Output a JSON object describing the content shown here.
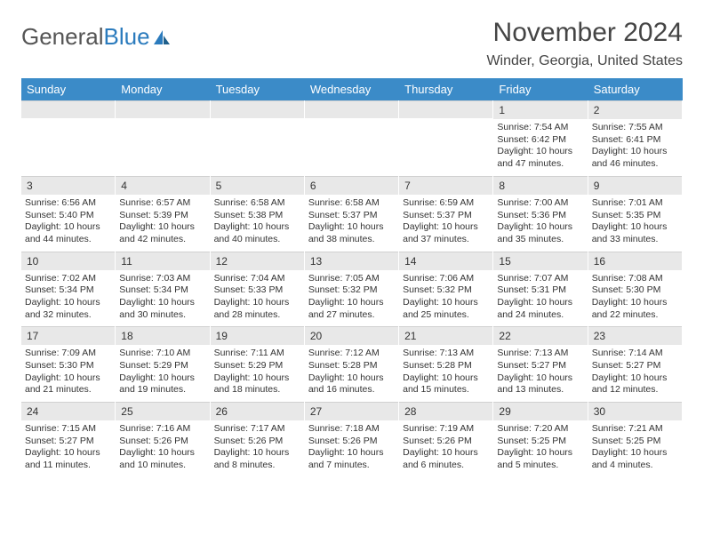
{
  "logo": {
    "text1": "General",
    "text2": "Blue"
  },
  "title": "November 2024",
  "location": "Winder, Georgia, United States",
  "weekdays": [
    "Sunday",
    "Monday",
    "Tuesday",
    "Wednesday",
    "Thursday",
    "Friday",
    "Saturday"
  ],
  "colors": {
    "header_bg": "#3b8bc8",
    "header_text": "#ffffff",
    "daynum_bg": "#e8e8e8",
    "text": "#333333",
    "logo_gray": "#555555",
    "logo_blue": "#2b7bbd"
  },
  "weeks": [
    [
      {
        "n": "",
        "sunrise": "",
        "sunset": "",
        "daylight": ""
      },
      {
        "n": "",
        "sunrise": "",
        "sunset": "",
        "daylight": ""
      },
      {
        "n": "",
        "sunrise": "",
        "sunset": "",
        "daylight": ""
      },
      {
        "n": "",
        "sunrise": "",
        "sunset": "",
        "daylight": ""
      },
      {
        "n": "",
        "sunrise": "",
        "sunset": "",
        "daylight": ""
      },
      {
        "n": "1",
        "sunrise": "Sunrise: 7:54 AM",
        "sunset": "Sunset: 6:42 PM",
        "daylight": "Daylight: 10 hours and 47 minutes."
      },
      {
        "n": "2",
        "sunrise": "Sunrise: 7:55 AM",
        "sunset": "Sunset: 6:41 PM",
        "daylight": "Daylight: 10 hours and 46 minutes."
      }
    ],
    [
      {
        "n": "3",
        "sunrise": "Sunrise: 6:56 AM",
        "sunset": "Sunset: 5:40 PM",
        "daylight": "Daylight: 10 hours and 44 minutes."
      },
      {
        "n": "4",
        "sunrise": "Sunrise: 6:57 AM",
        "sunset": "Sunset: 5:39 PM",
        "daylight": "Daylight: 10 hours and 42 minutes."
      },
      {
        "n": "5",
        "sunrise": "Sunrise: 6:58 AM",
        "sunset": "Sunset: 5:38 PM",
        "daylight": "Daylight: 10 hours and 40 minutes."
      },
      {
        "n": "6",
        "sunrise": "Sunrise: 6:58 AM",
        "sunset": "Sunset: 5:37 PM",
        "daylight": "Daylight: 10 hours and 38 minutes."
      },
      {
        "n": "7",
        "sunrise": "Sunrise: 6:59 AM",
        "sunset": "Sunset: 5:37 PM",
        "daylight": "Daylight: 10 hours and 37 minutes."
      },
      {
        "n": "8",
        "sunrise": "Sunrise: 7:00 AM",
        "sunset": "Sunset: 5:36 PM",
        "daylight": "Daylight: 10 hours and 35 minutes."
      },
      {
        "n": "9",
        "sunrise": "Sunrise: 7:01 AM",
        "sunset": "Sunset: 5:35 PM",
        "daylight": "Daylight: 10 hours and 33 minutes."
      }
    ],
    [
      {
        "n": "10",
        "sunrise": "Sunrise: 7:02 AM",
        "sunset": "Sunset: 5:34 PM",
        "daylight": "Daylight: 10 hours and 32 minutes."
      },
      {
        "n": "11",
        "sunrise": "Sunrise: 7:03 AM",
        "sunset": "Sunset: 5:34 PM",
        "daylight": "Daylight: 10 hours and 30 minutes."
      },
      {
        "n": "12",
        "sunrise": "Sunrise: 7:04 AM",
        "sunset": "Sunset: 5:33 PM",
        "daylight": "Daylight: 10 hours and 28 minutes."
      },
      {
        "n": "13",
        "sunrise": "Sunrise: 7:05 AM",
        "sunset": "Sunset: 5:32 PM",
        "daylight": "Daylight: 10 hours and 27 minutes."
      },
      {
        "n": "14",
        "sunrise": "Sunrise: 7:06 AM",
        "sunset": "Sunset: 5:32 PM",
        "daylight": "Daylight: 10 hours and 25 minutes."
      },
      {
        "n": "15",
        "sunrise": "Sunrise: 7:07 AM",
        "sunset": "Sunset: 5:31 PM",
        "daylight": "Daylight: 10 hours and 24 minutes."
      },
      {
        "n": "16",
        "sunrise": "Sunrise: 7:08 AM",
        "sunset": "Sunset: 5:30 PM",
        "daylight": "Daylight: 10 hours and 22 minutes."
      }
    ],
    [
      {
        "n": "17",
        "sunrise": "Sunrise: 7:09 AM",
        "sunset": "Sunset: 5:30 PM",
        "daylight": "Daylight: 10 hours and 21 minutes."
      },
      {
        "n": "18",
        "sunrise": "Sunrise: 7:10 AM",
        "sunset": "Sunset: 5:29 PM",
        "daylight": "Daylight: 10 hours and 19 minutes."
      },
      {
        "n": "19",
        "sunrise": "Sunrise: 7:11 AM",
        "sunset": "Sunset: 5:29 PM",
        "daylight": "Daylight: 10 hours and 18 minutes."
      },
      {
        "n": "20",
        "sunrise": "Sunrise: 7:12 AM",
        "sunset": "Sunset: 5:28 PM",
        "daylight": "Daylight: 10 hours and 16 minutes."
      },
      {
        "n": "21",
        "sunrise": "Sunrise: 7:13 AM",
        "sunset": "Sunset: 5:28 PM",
        "daylight": "Daylight: 10 hours and 15 minutes."
      },
      {
        "n": "22",
        "sunrise": "Sunrise: 7:13 AM",
        "sunset": "Sunset: 5:27 PM",
        "daylight": "Daylight: 10 hours and 13 minutes."
      },
      {
        "n": "23",
        "sunrise": "Sunrise: 7:14 AM",
        "sunset": "Sunset: 5:27 PM",
        "daylight": "Daylight: 10 hours and 12 minutes."
      }
    ],
    [
      {
        "n": "24",
        "sunrise": "Sunrise: 7:15 AM",
        "sunset": "Sunset: 5:27 PM",
        "daylight": "Daylight: 10 hours and 11 minutes."
      },
      {
        "n": "25",
        "sunrise": "Sunrise: 7:16 AM",
        "sunset": "Sunset: 5:26 PM",
        "daylight": "Daylight: 10 hours and 10 minutes."
      },
      {
        "n": "26",
        "sunrise": "Sunrise: 7:17 AM",
        "sunset": "Sunset: 5:26 PM",
        "daylight": "Daylight: 10 hours and 8 minutes."
      },
      {
        "n": "27",
        "sunrise": "Sunrise: 7:18 AM",
        "sunset": "Sunset: 5:26 PM",
        "daylight": "Daylight: 10 hours and 7 minutes."
      },
      {
        "n": "28",
        "sunrise": "Sunrise: 7:19 AM",
        "sunset": "Sunset: 5:26 PM",
        "daylight": "Daylight: 10 hours and 6 minutes."
      },
      {
        "n": "29",
        "sunrise": "Sunrise: 7:20 AM",
        "sunset": "Sunset: 5:25 PM",
        "daylight": "Daylight: 10 hours and 5 minutes."
      },
      {
        "n": "30",
        "sunrise": "Sunrise: 7:21 AM",
        "sunset": "Sunset: 5:25 PM",
        "daylight": "Daylight: 10 hours and 4 minutes."
      }
    ]
  ]
}
